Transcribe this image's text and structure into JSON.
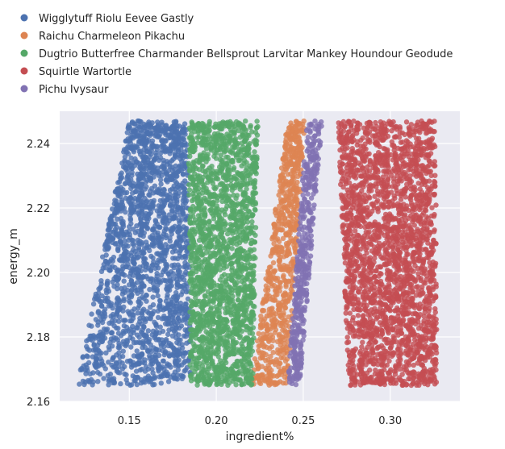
{
  "chart_data": {
    "type": "scatter",
    "title": "",
    "xlabel": "ingredient%",
    "ylabel": "energy_m",
    "xlim": [
      0.11,
      0.34
    ],
    "ylim": [
      2.16,
      2.25
    ],
    "xticks": [
      0.15,
      0.2,
      0.25,
      0.3
    ],
    "yticks": [
      2.16,
      2.18,
      2.2,
      2.22,
      2.24
    ],
    "grid": true,
    "legend_position": "top-left-outside",
    "y_data_range": [
      2.165,
      2.247
    ],
    "series": [
      {
        "name": "Wigglytuff Riolu Eevee Gastly",
        "color": "#4c72b0",
        "x_left_bottom": 0.12,
        "x_right_bottom": 0.186,
        "x_left_top": 0.15,
        "x_right_top": 0.183,
        "density": 1900
      },
      {
        "name": "Raichu Charmeleon Pikachu",
        "color": "#dd8452",
        "x_left_bottom": 0.22,
        "x_right_bottom": 0.241,
        "x_left_top": 0.241,
        "x_right_top": 0.251,
        "density": 750
      },
      {
        "name": "Dugtrio Butterfree Charmander Bellsprout Larvitar Mankey Houndour Geodude",
        "color": "#55a868",
        "x_left_bottom": 0.185,
        "x_right_bottom": 0.221,
        "x_left_top": 0.184,
        "x_right_top": 0.224,
        "density": 1900
      },
      {
        "name": "Squirtle Wartortle",
        "color": "#c44e52",
        "x_left_bottom": 0.276,
        "x_right_bottom": 0.327,
        "x_left_top": 0.27,
        "x_right_top": 0.326,
        "density": 2400
      },
      {
        "name": "Pichu Ivysaur",
        "color": "#8172b3",
        "x_left_bottom": 0.241,
        "x_right_bottom": 0.248,
        "x_left_top": 0.252,
        "x_right_top": 0.261,
        "density": 450
      }
    ]
  }
}
